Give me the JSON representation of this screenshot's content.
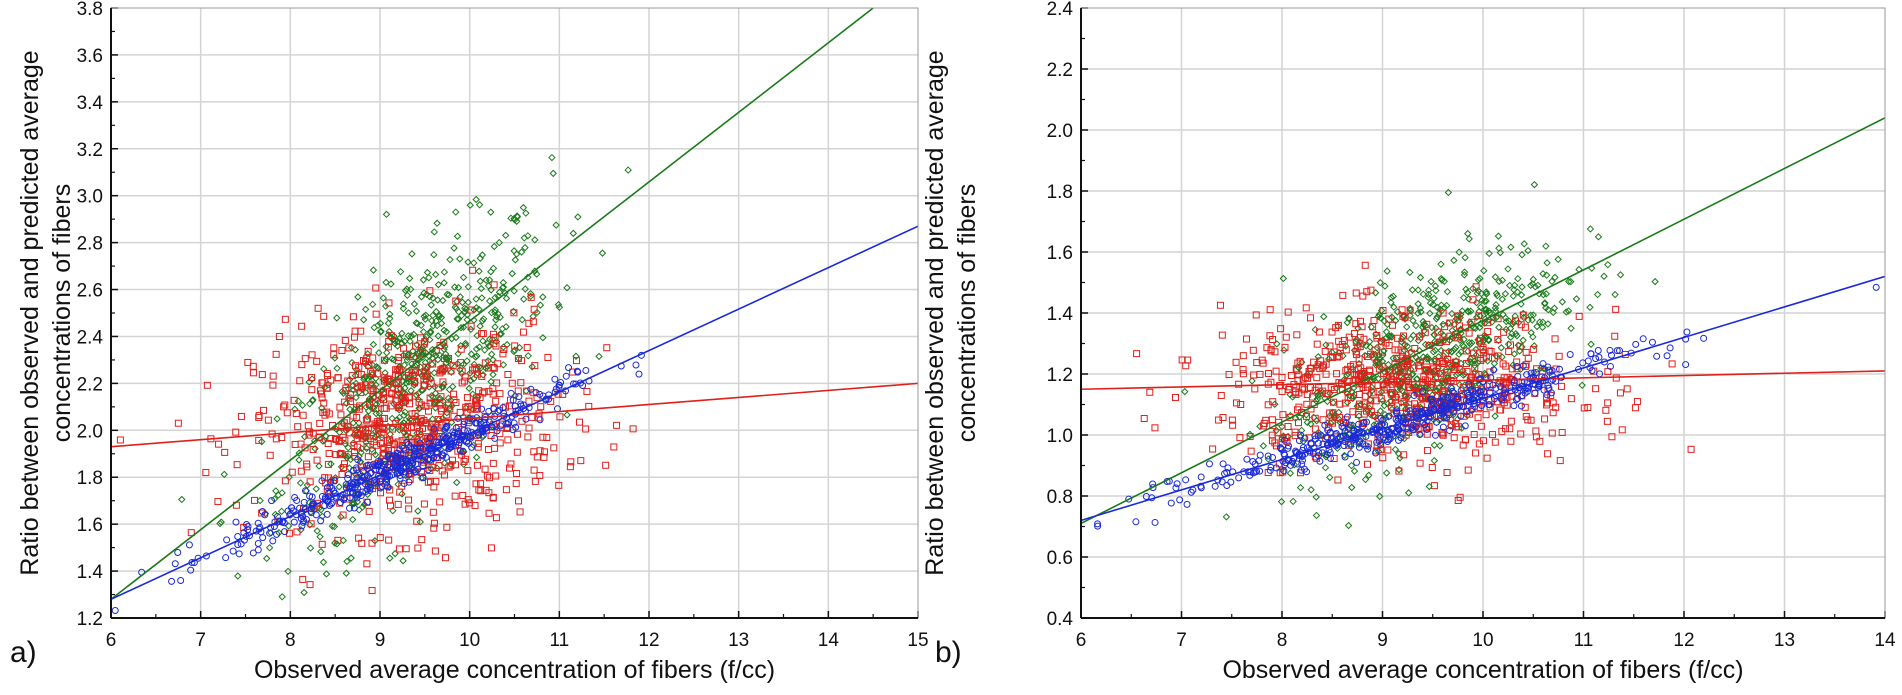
{
  "chart_data": [
    {
      "type": "scatter",
      "panel_label": "a)",
      "xlabel": "Observed average concentration of fibers (f/cc)",
      "ylabel_lines": [
        "Ratio between observed and predicted average",
        "concentrations of fibers"
      ],
      "xlim": [
        6,
        15
      ],
      "ylim": [
        1.2,
        3.8
      ],
      "xticks": [
        "6",
        "7",
        "8",
        "9",
        "10",
        "11",
        "12",
        "13",
        "14",
        "15"
      ],
      "yticks": [
        "1.2",
        "1.4",
        "1.6",
        "1.8",
        "2.0",
        "2.2",
        "2.4",
        "2.6",
        "2.8",
        "3.0",
        "3.2",
        "3.4",
        "3.6",
        "3.8"
      ],
      "grid": true,
      "series": [
        {
          "name": "green",
          "color": "#1a7a1a",
          "marker": "diamond",
          "fit_line": [
            [
              6,
              1.28
            ],
            [
              14.5,
              3.8
            ]
          ],
          "cloud": {
            "n": 700,
            "x_mean": 9.4,
            "x_sd": 0.75,
            "y_at_mean": 2.2,
            "slope": 0.3,
            "y_sd": 0.25
          }
        },
        {
          "name": "red",
          "color": "#e0201a",
          "marker": "square",
          "fit_line": [
            [
              6,
              1.93
            ],
            [
              15,
              2.2
            ]
          ],
          "cloud": {
            "n": 650,
            "x_mean": 9.3,
            "x_sd": 0.85,
            "y_at_mean": 2.02,
            "slope": 0.03,
            "y_sd": 0.22
          }
        },
        {
          "name": "blue",
          "color": "#1a2ad8",
          "marker": "circle",
          "fit_line": [
            [
              6,
              1.28
            ],
            [
              15,
              2.87
            ]
          ],
          "cloud": {
            "n": 450,
            "x_mean": 9.2,
            "x_sd": 0.95,
            "y_at_mean": 1.85,
            "slope": 0.177,
            "y_sd": 0.04
          }
        }
      ]
    },
    {
      "type": "scatter",
      "panel_label": "b)",
      "xlabel": "Observed average concentration of fibers (f/cc)",
      "ylabel_lines": [
        "Ratio between observed and predicted average",
        "concentrations of fibers"
      ],
      "xlim": [
        6,
        14
      ],
      "ylim": [
        0.4,
        2.4
      ],
      "xticks": [
        "6",
        "7",
        "8",
        "9",
        "10",
        "11",
        "12",
        "13",
        "14"
      ],
      "yticks": [
        "0.4",
        "0.6",
        "0.8",
        "1.0",
        "1.2",
        "1.4",
        "1.6",
        "1.8",
        "2.0",
        "2.2",
        "2.4"
      ],
      "grid": true,
      "series": [
        {
          "name": "green",
          "color": "#1a7a1a",
          "marker": "diamond",
          "fit_line": [
            [
              6,
              0.71
            ],
            [
              14,
              2.04
            ]
          ],
          "cloud": {
            "n": 700,
            "x_mean": 9.4,
            "x_sd": 0.7,
            "y_at_mean": 1.25,
            "slope": 0.17,
            "y_sd": 0.14
          }
        },
        {
          "name": "red",
          "color": "#e0201a",
          "marker": "square",
          "fit_line": [
            [
              6,
              1.15
            ],
            [
              14,
              1.21
            ]
          ],
          "cloud": {
            "n": 650,
            "x_mean": 9.2,
            "x_sd": 0.9,
            "y_at_mean": 1.16,
            "slope": 0.0,
            "y_sd": 0.12
          }
        },
        {
          "name": "blue",
          "color": "#1a2ad8",
          "marker": "circle",
          "fit_line": [
            [
              6,
              0.72
            ],
            [
              14,
              1.52
            ]
          ],
          "cloud": {
            "n": 450,
            "x_mean": 9.2,
            "x_sd": 1.1,
            "y_at_mean": 1.04,
            "slope": 0.1,
            "y_sd": 0.03
          }
        }
      ]
    }
  ]
}
